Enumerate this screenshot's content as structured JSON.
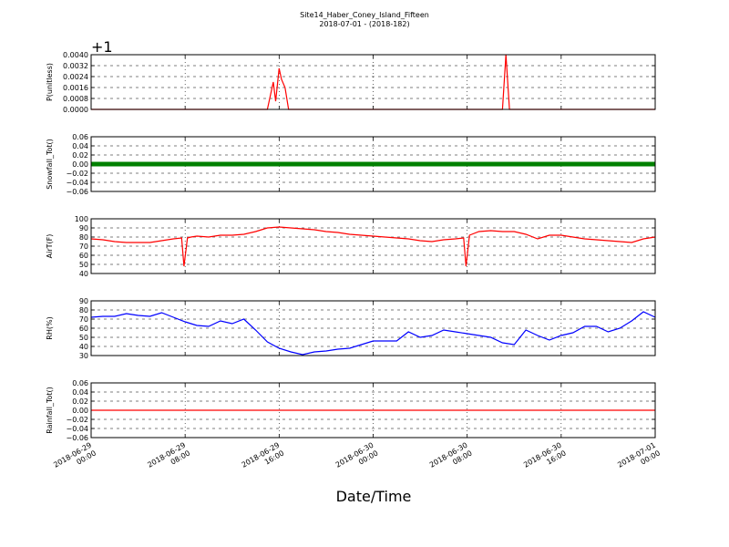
{
  "figure": {
    "title_line1": "Site14_Haber_Coney_Island_Fifteen",
    "title_line2": "2018-07-01 - (2018-182)",
    "xlabel": "Date/Time",
    "x_tick_labels": [
      [
        "2018-06-29",
        "00:00"
      ],
      [
        "2018-06-29",
        "08:00"
      ],
      [
        "2018-06-29",
        "16:00"
      ],
      [
        "2018-06-30",
        "00:00"
      ],
      [
        "2018-06-30",
        "08:00"
      ],
      [
        "2018-06-30",
        "16:00"
      ],
      [
        "2018-07-01",
        "00:00"
      ]
    ],
    "x_range_hours": [
      0,
      48
    ]
  },
  "chart_data": [
    {
      "type": "line",
      "ylabel": "P(unitless)",
      "offset_label": "+1",
      "ylim": [
        0,
        0.004
      ],
      "yticks": [
        "0.0000",
        "0.0008",
        "0.0016",
        "0.0024",
        "0.0032",
        "0.0040"
      ],
      "grid": true,
      "series": [
        {
          "color": "#ff0000",
          "x": [
            0,
            15,
            15.5,
            15.7,
            16,
            16.2,
            16.5,
            16.8,
            17,
            17.2,
            35,
            35.3,
            35.6,
            48
          ],
          "y": [
            0,
            0,
            0.002,
            0.0006,
            0.003,
            0.0022,
            0.0016,
            0,
            0,
            0,
            0,
            0.004,
            0,
            0
          ]
        }
      ]
    },
    {
      "type": "line",
      "ylabel": "Snowfall_Tot()",
      "ylim": [
        -0.06,
        0.06
      ],
      "yticks": [
        "−0.06",
        "−0.04",
        "−0.02",
        "0.00",
        "0.02",
        "0.04",
        "0.06"
      ],
      "grid": true,
      "series": [
        {
          "color": "#008000",
          "markers": true,
          "x": [
            0,
            48
          ],
          "y": [
            0,
            0
          ]
        }
      ]
    },
    {
      "type": "line",
      "ylabel": "AirT(F)",
      "ylim": [
        40,
        100
      ],
      "yticks": [
        "40",
        "50",
        "60",
        "70",
        "80",
        "90",
        "100"
      ],
      "grid": true,
      "series": [
        {
          "color": "#ff0000",
          "x": [
            0,
            1,
            2,
            3,
            4,
            5,
            6,
            7,
            7.7,
            7.9,
            8.2,
            8.5,
            9,
            10,
            11,
            12,
            13,
            14,
            15,
            16,
            17,
            18,
            19,
            20,
            21,
            22,
            23,
            24,
            25,
            26,
            27,
            28,
            29,
            30,
            31,
            31.7,
            31.9,
            32.2,
            33,
            34,
            35,
            36,
            37,
            38,
            39,
            40,
            41,
            42,
            43,
            44,
            45,
            46,
            47,
            48
          ],
          "y": [
            78,
            77,
            75,
            74,
            74,
            74,
            76,
            78,
            79,
            48,
            79,
            80,
            81,
            80,
            82,
            82,
            83,
            86,
            90,
            91,
            90,
            89,
            88,
            86,
            85,
            83,
            82,
            81,
            80,
            79,
            78,
            76,
            75,
            77,
            78,
            79,
            48,
            82,
            86,
            87,
            86,
            86,
            83,
            78,
            82,
            82,
            80,
            78,
            77,
            76,
            75,
            74,
            78,
            80
          ]
        }
      ]
    },
    {
      "type": "line",
      "ylabel": "RH(%)",
      "ylim": [
        30,
        90
      ],
      "yticks": [
        "30",
        "40",
        "50",
        "60",
        "70",
        "80",
        "90"
      ],
      "grid": true,
      "series": [
        {
          "color": "#0000ff",
          "x": [
            0,
            1,
            2,
            3,
            4,
            5,
            6,
            7,
            8,
            9,
            10,
            11,
            12,
            13,
            14,
            15,
            16,
            17,
            18,
            19,
            20,
            21,
            22,
            23,
            24,
            25,
            26,
            27,
            28,
            29,
            30,
            31,
            32,
            33,
            34,
            35,
            36,
            37,
            38,
            39,
            40,
            41,
            42,
            43,
            44,
            45,
            46,
            47,
            48
          ],
          "y": [
            72,
            73,
            73,
            76,
            74,
            73,
            77,
            72,
            67,
            63,
            62,
            68,
            65,
            70,
            58,
            45,
            38,
            34,
            31,
            34,
            35,
            37,
            38,
            42,
            46,
            46,
            46,
            56,
            50,
            52,
            58,
            56,
            54,
            52,
            50,
            44,
            42,
            58,
            52,
            47,
            52,
            55,
            62,
            62,
            56,
            60,
            68,
            78,
            72
          ]
        }
      ]
    },
    {
      "type": "line",
      "ylabel": "Rainfall_Tot()",
      "ylim": [
        -0.06,
        0.06
      ],
      "yticks": [
        "−0.06",
        "−0.04",
        "−0.02",
        "0.00",
        "0.02",
        "0.04",
        "0.06"
      ],
      "grid": true,
      "series": [
        {
          "color": "#ff0000",
          "x": [
            0,
            48
          ],
          "y": [
            0,
            0
          ]
        }
      ]
    }
  ]
}
